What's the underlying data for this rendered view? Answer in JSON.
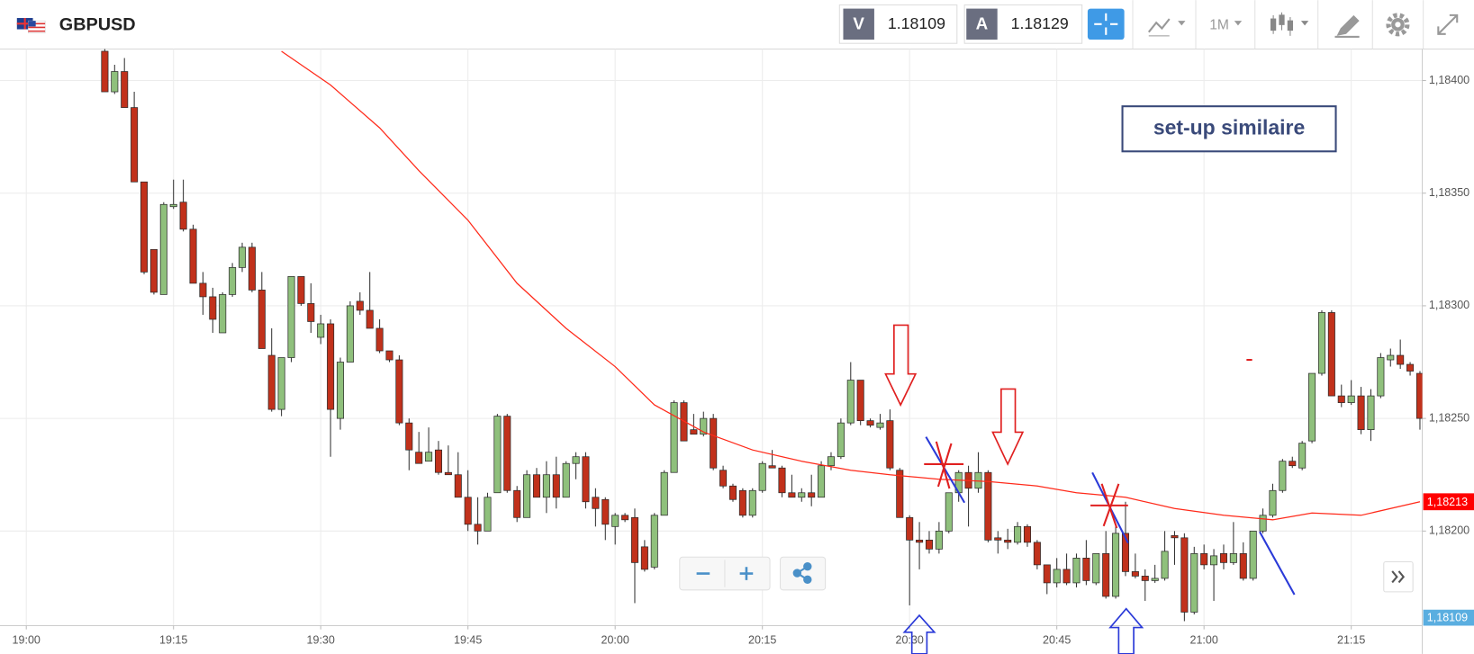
{
  "header": {
    "symbol": "GBPUSD",
    "sell_label": "V",
    "sell_price": "1.18109",
    "buy_label": "A",
    "buy_price": "1.18129",
    "timeframe": "1M"
  },
  "chart_data": {
    "type": "candlestick",
    "annotation": "set-up similaire",
    "up_color": "#8fc07c",
    "down_color": "#c1311b",
    "xlim": [
      -2.68,
      142.24
    ],
    "ylim": [
      1.18158,
      1.18414
    ],
    "grid": true,
    "xticks": [
      {
        "value": 0,
        "label": "19:00"
      },
      {
        "value": 15,
        "label": "19:15"
      },
      {
        "value": 30,
        "label": "19:30"
      },
      {
        "value": 45,
        "label": "19:45"
      },
      {
        "value": 60,
        "label": "20:00"
      },
      {
        "value": 75,
        "label": "20:15"
      },
      {
        "value": 90,
        "label": "20:30"
      },
      {
        "value": 105,
        "label": "20:45"
      },
      {
        "value": 120,
        "label": "21:00"
      },
      {
        "value": 135,
        "label": "21:15"
      }
    ],
    "yticks": [
      {
        "value": 1.184,
        "label": "1,18400"
      },
      {
        "value": 1.1835,
        "label": "1,18350"
      },
      {
        "value": 1.183,
        "label": "1,18300"
      },
      {
        "value": 1.1825,
        "label": "1,18250"
      },
      {
        "value": 1.182,
        "label": "1,18200"
      }
    ],
    "x": [
      8,
      9,
      10,
      11,
      12,
      13,
      14,
      15,
      16,
      17,
      18,
      19,
      20,
      21,
      22,
      23,
      24,
      25,
      26,
      27,
      28,
      29,
      30,
      31,
      32,
      33,
      34,
      35,
      36,
      37,
      38,
      39,
      40,
      41,
      42,
      43,
      44,
      45,
      46,
      47,
      48,
      49,
      50,
      51,
      52,
      53,
      54,
      55,
      56,
      57,
      58,
      59,
      60,
      61,
      62,
      63,
      64,
      65,
      66,
      67,
      68,
      69,
      70,
      71,
      72,
      73,
      74,
      75,
      76,
      77,
      78,
      79,
      80,
      81,
      82,
      83,
      84,
      85,
      86,
      87,
      88,
      89,
      90,
      91,
      92,
      93,
      94,
      95,
      96,
      97,
      98,
      99,
      100,
      101,
      102,
      103,
      104,
      105,
      106,
      107,
      108,
      109,
      110,
      111,
      112,
      113,
      114,
      115,
      116,
      117,
      118,
      119,
      120,
      121,
      122,
      123,
      124,
      125,
      126,
      127,
      128,
      129,
      130,
      131,
      132,
      133,
      134,
      135,
      136,
      137,
      138,
      139,
      140,
      141,
      142
    ],
    "open": [
      1.18413,
      1.18395,
      1.18404,
      1.18388,
      1.18355,
      1.18325,
      1.18305,
      1.18344,
      1.18346,
      1.18334,
      1.1831,
      1.18304,
      1.18288,
      1.18305,
      1.18317,
      1.18326,
      1.18307,
      1.18278,
      1.18254,
      1.18277,
      1.18313,
      1.18301,
      1.18286,
      1.18292,
      1.1825,
      1.18275,
      1.18302,
      1.18298,
      1.1829,
      1.1828,
      1.18276,
      1.18248,
      1.18235,
      1.18231,
      1.18236,
      1.18226,
      1.18225,
      1.18215,
      1.18203,
      1.182,
      1.18217,
      1.18251,
      1.18218,
      1.18206,
      1.18225,
      1.18215,
      1.18225,
      1.18215,
      1.1823,
      1.18233,
      1.18215,
      1.18214,
      1.18202,
      1.18207,
      1.18206,
      1.18193,
      1.18184,
      1.18207,
      1.18226,
      1.18257,
      1.18245,
      1.18243,
      1.1825,
      1.18227,
      1.1822,
      1.18218,
      1.18207,
      1.18218,
      1.18229,
      1.18228,
      1.18217,
      1.18215,
      1.18217,
      1.18215,
      1.18229,
      1.18233,
      1.18248,
      1.18267,
      1.18249,
      1.18246,
      1.18249,
      1.18227,
      1.18206,
      1.18196,
      1.18196,
      1.18192,
      1.182,
      1.18217,
      1.18226,
      1.18219,
      1.18226,
      1.18197,
      1.18196,
      1.18195,
      1.18202,
      1.18195,
      1.18185,
      1.18177,
      1.18183,
      1.18177,
      1.18188,
      1.18177,
      1.1819,
      1.18171,
      1.18199,
      1.18182,
      1.1818,
      1.18178,
      1.18179,
      1.18198,
      1.18197,
      1.18164,
      1.1819,
      1.18185,
      1.1819,
      1.18186,
      1.1819,
      1.18179,
      1.182,
      1.18207,
      1.18218,
      1.18231,
      1.18228,
      1.1824,
      1.1827,
      1.18297,
      1.1826,
      1.18257,
      1.1826,
      1.18245,
      1.1826,
      1.18276,
      1.18278,
      1.18274,
      1.1827
    ],
    "high": [
      1.18417,
      1.18407,
      1.1841,
      1.18395,
      1.18355,
      1.18325,
      1.18346,
      1.18356,
      1.18356,
      1.18336,
      1.18315,
      1.18308,
      1.18306,
      1.18319,
      1.18328,
      1.18328,
      1.18315,
      1.1829,
      1.18277,
      1.18313,
      1.18313,
      1.1831,
      1.18296,
      1.18294,
      1.18277,
      1.18302,
      1.18306,
      1.18315,
      1.18294,
      1.1828,
      1.18278,
      1.1825,
      1.18244,
      1.18246,
      1.1824,
      1.18238,
      1.18235,
      1.18227,
      1.18215,
      1.18217,
      1.18252,
      1.18252,
      1.1822,
      1.18227,
      1.18228,
      1.18231,
      1.18233,
      1.18231,
      1.18235,
      1.18235,
      1.18219,
      1.18215,
      1.18208,
      1.18208,
      1.1821,
      1.18196,
      1.18208,
      1.18227,
      1.18258,
      1.18258,
      1.18252,
      1.18253,
      1.18252,
      1.18229,
      1.18221,
      1.18219,
      1.18219,
      1.18231,
      1.18236,
      1.18229,
      1.18225,
      1.18219,
      1.18225,
      1.18231,
      1.18235,
      1.1825,
      1.18275,
      1.18267,
      1.1825,
      1.18252,
      1.18254,
      1.18228,
      1.18207,
      1.18204,
      1.182,
      1.18204,
      1.18217,
      1.18227,
      1.18229,
      1.18235,
      1.18227,
      1.182,
      1.18201,
      1.18204,
      1.18203,
      1.18196,
      1.18185,
      1.18188,
      1.1819,
      1.1819,
      1.18196,
      1.1819,
      1.182,
      1.18202,
      1.18213,
      1.1819,
      1.18183,
      1.18185,
      1.182,
      1.182,
      1.18199,
      1.18193,
      1.18194,
      1.18192,
      1.18194,
      1.18204,
      1.18195,
      1.182,
      1.1821,
      1.18221,
      1.18232,
      1.18233,
      1.1824,
      1.1827,
      1.18298,
      1.18298,
      1.18265,
      1.18267,
      1.18264,
      1.18263,
      1.18279,
      1.18281,
      1.18285,
      1.18275,
      1.18271
    ],
    "low": [
      1.18395,
      1.18394,
      1.18388,
      1.18355,
      1.18314,
      1.18305,
      1.18305,
      1.18343,
      1.18333,
      1.1831,
      1.18296,
      1.18288,
      1.18288,
      1.18304,
      1.18315,
      1.18306,
      1.18281,
      1.18253,
      1.18251,
      1.18275,
      1.183,
      1.18288,
      1.18283,
      1.18233,
      1.18245,
      1.18275,
      1.18296,
      1.1829,
      1.18279,
      1.18275,
      1.18247,
      1.18227,
      1.1823,
      1.18231,
      1.18225,
      1.18225,
      1.18215,
      1.182,
      1.18194,
      1.182,
      1.18217,
      1.18217,
      1.18204,
      1.18206,
      1.18215,
      1.18208,
      1.1821,
      1.18215,
      1.18223,
      1.1821,
      1.18202,
      1.18196,
      1.18194,
      1.18204,
      1.18168,
      1.18182,
      1.18183,
      1.18207,
      1.18226,
      1.1824,
      1.18243,
      1.18242,
      1.18227,
      1.18219,
      1.18213,
      1.18206,
      1.18206,
      1.18217,
      1.18228,
      1.18215,
      1.18215,
      1.18213,
      1.18211,
      1.18215,
      1.18227,
      1.18232,
      1.18247,
      1.18247,
      1.18246,
      1.18245,
      1.18227,
      1.18206,
      1.18167,
      1.18183,
      1.1819,
      1.1819,
      1.18199,
      1.18213,
      1.18202,
      1.18217,
      1.18195,
      1.1819,
      1.18192,
      1.18194,
      1.18193,
      1.18183,
      1.18172,
      1.18175,
      1.18176,
      1.18175,
      1.18176,
      1.18176,
      1.1817,
      1.1817,
      1.1818,
      1.18179,
      1.18169,
      1.18177,
      1.18178,
      1.18185,
      1.1816,
      1.18163,
      1.18183,
      1.18169,
      1.18183,
      1.18185,
      1.18178,
      1.18178,
      1.18199,
      1.18206,
      1.18217,
      1.18228,
      1.18227,
      1.18239,
      1.18269,
      1.1826,
      1.18255,
      1.18256,
      1.18243,
      1.1824,
      1.18259,
      1.18273,
      1.18272,
      1.18269,
      1.18245
    ],
    "close": [
      1.18395,
      1.18404,
      1.18388,
      1.18355,
      1.18315,
      1.18306,
      1.18345,
      1.18345,
      1.18334,
      1.1831,
      1.18304,
      1.18294,
      1.18305,
      1.18317,
      1.18326,
      1.18307,
      1.18281,
      1.18254,
      1.18277,
      1.18313,
      1.18301,
      1.18293,
      1.18292,
      1.18254,
      1.18275,
      1.183,
      1.18298,
      1.1829,
      1.1828,
      1.18276,
      1.18248,
      1.18236,
      1.1823,
      1.18235,
      1.18226,
      1.18225,
      1.18215,
      1.18203,
      1.182,
      1.18215,
      1.18251,
      1.18218,
      1.18206,
      1.18225,
      1.18215,
      1.18225,
      1.18215,
      1.1823,
      1.18233,
      1.18213,
      1.1821,
      1.18203,
      1.18207,
      1.18205,
      1.18186,
      1.18183,
      1.18207,
      1.18226,
      1.18257,
      1.1824,
      1.18243,
      1.1825,
      1.18228,
      1.1822,
      1.18214,
      1.18207,
      1.18218,
      1.1823,
      1.18228,
      1.18217,
      1.18215,
      1.18217,
      1.18215,
      1.18229,
      1.18233,
      1.18248,
      1.18267,
      1.18249,
      1.18247,
      1.18248,
      1.18228,
      1.18206,
      1.18196,
      1.18195,
      1.18192,
      1.182,
      1.18217,
      1.18226,
      1.18219,
      1.18226,
      1.18196,
      1.18196,
      1.18195,
      1.18202,
      1.18195,
      1.18185,
      1.18177,
      1.18183,
      1.18177,
      1.18188,
      1.18178,
      1.1819,
      1.18171,
      1.18199,
      1.18182,
      1.1818,
      1.18178,
      1.18179,
      1.18191,
      1.18197,
      1.18164,
      1.1819,
      1.18185,
      1.18189,
      1.18186,
      1.1819,
      1.18179,
      1.182,
      1.18207,
      1.18218,
      1.18231,
      1.18229,
      1.18239,
      1.1827,
      1.18297,
      1.1826,
      1.18257,
      1.1826,
      1.18245,
      1.1826,
      1.18277,
      1.18278,
      1.18274,
      1.18271,
      1.1825
    ],
    "overlay": {
      "color": "#ff2a1a",
      "x": [
        26,
        31,
        36,
        40,
        45,
        50,
        55,
        60,
        64,
        69,
        74,
        79,
        84,
        88,
        93,
        98,
        103,
        107,
        112,
        117,
        122,
        127,
        131,
        136,
        142
      ],
      "values": [
        1.18413,
        1.18398,
        1.18379,
        1.1836,
        1.18338,
        1.1831,
        1.1829,
        1.18273,
        1.18256,
        1.18244,
        1.18236,
        1.18231,
        1.18227,
        1.18225,
        1.18223,
        1.18222,
        1.1822,
        1.18217,
        1.18215,
        1.1821,
        1.18207,
        1.18205,
        1.18208,
        1.18207,
        1.18213
      ]
    },
    "price_tags": [
      {
        "value": 1.18213,
        "label": "1,18213",
        "color": "#ff0000"
      }
    ],
    "current_tag": "1,18109",
    "current_tag_color": "#5aaee0"
  }
}
